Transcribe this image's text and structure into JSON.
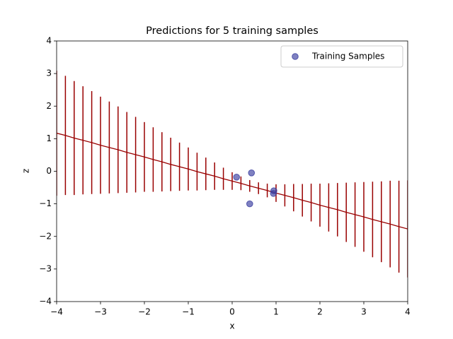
{
  "chart_data": {
    "type": "line",
    "title": "Predictions for 5 training samples",
    "xlabel": "x",
    "ylabel": "z",
    "xlim": [
      -4,
      4
    ],
    "ylim": [
      -4,
      4
    ],
    "xticks": [
      {
        "value": -4,
        "label": "−4"
      },
      {
        "value": -3,
        "label": "−3"
      },
      {
        "value": -2,
        "label": "−2"
      },
      {
        "value": -1,
        "label": "−1"
      },
      0,
      1,
      2,
      3,
      4
    ],
    "yticks": [
      {
        "value": -4,
        "label": "−4"
      },
      {
        "value": -3,
        "label": "−3"
      },
      {
        "value": -2,
        "label": "−2"
      },
      {
        "value": -1,
        "label": "−1"
      },
      0,
      1,
      2,
      3,
      4
    ],
    "color": "#990000",
    "x": [
      -4,
      -3.8,
      -3.6,
      -3.4,
      -3.2,
      -3,
      -2.8,
      -2.6,
      -2.4,
      -2.2,
      -2,
      -1.8,
      -1.6,
      -1.4,
      -1.2,
      -1,
      -0.8,
      -0.6,
      -0.4,
      -0.2,
      0,
      0.2,
      0.4,
      0.6,
      0.8,
      1,
      1.2,
      1.4,
      1.6,
      1.8,
      2,
      2.2,
      2.4,
      2.6,
      2.8,
      3,
      3.2,
      3.4,
      3.6,
      3.8,
      4
    ],
    "values": [
      1.17,
      1.1,
      1.02,
      0.95,
      0.88,
      0.8,
      0.73,
      0.66,
      0.58,
      0.51,
      0.44,
      0.36,
      0.29,
      0.21,
      0.14,
      0.07,
      -0.01,
      -0.08,
      -0.15,
      -0.23,
      -0.3,
      -0.37,
      -0.45,
      -0.52,
      -0.59,
      -0.67,
      -0.74,
      -0.81,
      -0.89,
      -0.96,
      -1.04,
      -1.11,
      -1.18,
      -1.26,
      -1.33,
      -1.4,
      -1.48,
      -1.55,
      -1.62,
      -1.7,
      -1.77
    ],
    "errors": [
      1.92,
      1.83,
      1.75,
      1.66,
      1.58,
      1.49,
      1.41,
      1.33,
      1.24,
      1.16,
      1.07,
      0.99,
      0.91,
      0.82,
      0.74,
      0.66,
      0.58,
      0.5,
      0.42,
      0.34,
      0.27,
      0.21,
      0.18,
      0.18,
      0.21,
      0.27,
      0.34,
      0.42,
      0.5,
      0.58,
      0.66,
      0.74,
      0.82,
      0.91,
      0.99,
      1.07,
      1.16,
      1.24,
      1.33,
      1.41,
      1.49
    ],
    "scatter": {
      "name": "Training Samples",
      "color": "#3a3da0",
      "x": [
        0.1,
        0.44,
        0.4,
        0.95,
        0.94
      ],
      "values": [
        -0.18,
        -0.05,
        -1.0,
        -0.6,
        -0.68
      ]
    },
    "legend": "upper right"
  }
}
